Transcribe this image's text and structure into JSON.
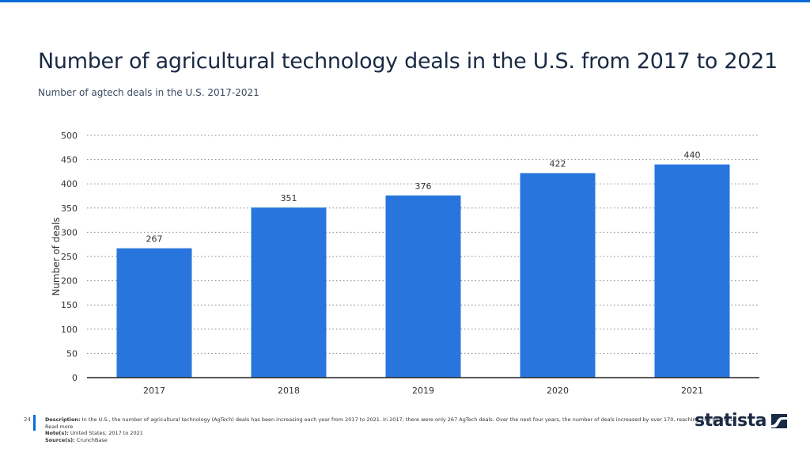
{
  "header": {
    "title": "Number of agricultural technology deals in the U.S. from 2017 to 2021",
    "subtitle": "Number of agtech deals in the U.S. 2017-2021"
  },
  "chart_data": {
    "type": "bar",
    "categories": [
      "2017",
      "2018",
      "2019",
      "2020",
      "2021"
    ],
    "values": [
      267,
      351,
      376,
      422,
      440
    ],
    "ylabel": "Number of deals",
    "xlabel": "",
    "ylim": [
      0,
      500
    ],
    "yticks": [
      0,
      50,
      100,
      150,
      200,
      250,
      300,
      350,
      400,
      450,
      500
    ],
    "grid": true,
    "bar_color": "#2876dd"
  },
  "footer": {
    "page": "24",
    "description_label": "Description:",
    "description": "In the U.S., the number of agricultural technology (AgTech) deals has been increasing each year from 2017 to 2021. In 2017, there were only 267 AgTech deals. Over the next four years, the number of deals increased by over 170, reaching 440 by 2021.",
    "read_more": "Read more",
    "note_label": "Note(s):",
    "note": "United States; 2017 to 2021",
    "source_label": "Source(s):",
    "source": "CrunchBase"
  },
  "logo": {
    "text": "statista"
  }
}
